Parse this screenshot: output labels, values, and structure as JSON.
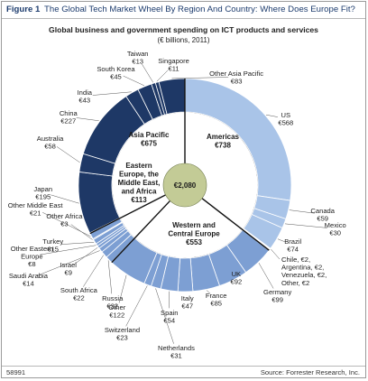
{
  "figure": {
    "label": "Figure 1",
    "title": "The Global Tech Market Wheel By Region And Country: Where Does Europe Fit?"
  },
  "chart_title": "Global business and government spending on ICT products and services",
  "chart_subtitle": "(€ billions, 2011)",
  "footer": {
    "id": "58991",
    "source": "Source: Forrester Research, Inc."
  },
  "colors": {
    "americas": "#a9c4e8",
    "emea": "#7d9fd3",
    "asia_pacific": "#1e3866",
    "outline": "#ffffff",
    "center": "#c3cb96"
  },
  "chart_data": {
    "type": "pie",
    "title": "Global business and government spending on ICT products and services",
    "subtitle": "(€ billions, 2011)",
    "center": {
      "label": "€2,080",
      "value": 2080
    },
    "regions": [
      {
        "key": "americas",
        "name": "Americas",
        "value_label": "€738",
        "value": 738
      },
      {
        "key": "emea",
        "name": "Western and Central Europe",
        "value_label": "€553",
        "value": 553
      },
      {
        "key": "emea_other",
        "name": "Eastern Europe, the Middle East, and Africa",
        "value_label": "€113",
        "value": 113
      },
      {
        "key": "asia_pacific",
        "name": "Asia Pacific",
        "value_label": "€675",
        "value": 675
      }
    ],
    "countries": [
      {
        "name": "US",
        "value_label": "€568",
        "value": 568,
        "region": "americas"
      },
      {
        "name": "Canada",
        "value_label": "€59",
        "value": 59,
        "region": "americas"
      },
      {
        "name": "Mexico",
        "value_label": "€30",
        "value": 30,
        "region": "americas"
      },
      {
        "name": "Brazil",
        "value_label": "€74",
        "value": 74,
        "region": "americas"
      },
      {
        "name": "Chile",
        "value_label": "€2",
        "value": 2,
        "region": "americas"
      },
      {
        "name": "Argentina",
        "value_label": "€2",
        "value": 2,
        "region": "americas"
      },
      {
        "name": "Venezuela",
        "value_label": "€2",
        "value": 2,
        "region": "americas"
      },
      {
        "name": "Other",
        "value_label": "€2",
        "value": 2,
        "region": "americas"
      },
      {
        "name": "Germany",
        "value_label": "€99",
        "value": 99,
        "region": "emea"
      },
      {
        "name": "UK",
        "value_label": "€92",
        "value": 92,
        "region": "emea"
      },
      {
        "name": "France",
        "value_label": "€85",
        "value": 85,
        "region": "emea"
      },
      {
        "name": "Italy",
        "value_label": "€47",
        "value": 47,
        "region": "emea"
      },
      {
        "name": "Spain",
        "value_label": "€54",
        "value": 54,
        "region": "emea"
      },
      {
        "name": "Netherlands",
        "value_label": "€31",
        "value": 31,
        "region": "emea"
      },
      {
        "name": "Switzerland",
        "value_label": "€23",
        "value": 23,
        "region": "emea"
      },
      {
        "name": "Other",
        "value_label": "€122",
        "value": 122,
        "region": "emea"
      },
      {
        "name": "Russia",
        "value_label": "€22",
        "value": 22,
        "region": "emea_other"
      },
      {
        "name": "South Africa",
        "value_label": "€22",
        "value": 22,
        "region": "emea_other"
      },
      {
        "name": "Saudi Arabia",
        "value_label": "€14",
        "value": 14,
        "region": "emea_other"
      },
      {
        "name": "Israel",
        "value_label": "€9",
        "value": 9,
        "region": "emea_other"
      },
      {
        "name": "Other Eastern Europe",
        "value_label": "€8",
        "value": 8,
        "region": "emea_other"
      },
      {
        "name": "Turkey",
        "value_label": "€15",
        "value": 15,
        "region": "emea_other"
      },
      {
        "name": "Other Africa",
        "value_label": "€3",
        "value": 3,
        "region": "emea_other"
      },
      {
        "name": "Other Middle East",
        "value_label": "€21",
        "value": 21,
        "region": "emea_other"
      },
      {
        "name": "Japan",
        "value_label": "€195",
        "value": 195,
        "region": "asia_pacific"
      },
      {
        "name": "Australia",
        "value_label": "€58",
        "value": 58,
        "region": "asia_pacific"
      },
      {
        "name": "China",
        "value_label": "€227",
        "value": 227,
        "region": "asia_pacific"
      },
      {
        "name": "India",
        "value_label": "€43",
        "value": 43,
        "region": "asia_pacific"
      },
      {
        "name": "South Korea",
        "value_label": "€45",
        "value": 45,
        "region": "asia_pacific"
      },
      {
        "name": "Taiwan",
        "value_label": "€13",
        "value": 13,
        "region": "asia_pacific"
      },
      {
        "name": "Singapore",
        "value_label": "€11",
        "value": 11,
        "region": "asia_pacific"
      },
      {
        "name": "Other Asia Pacific",
        "value_label": "€83",
        "value": 83,
        "region": "asia_pacific"
      }
    ],
    "callout_labels": [
      {
        "region": "americas",
        "text": "Chile, €2, Argentina, €2, Venezuela, €2, Other, €2"
      }
    ]
  }
}
